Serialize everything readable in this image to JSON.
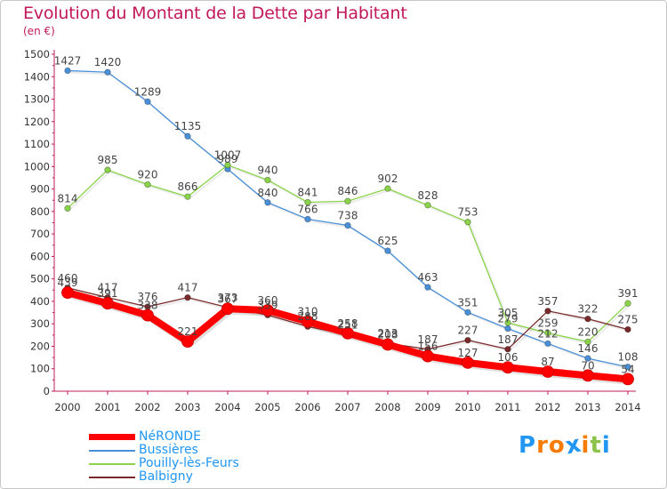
{
  "title": "Evolution du Montant de la Dette par Habitant",
  "subtitle": "(en €)",
  "colors": {
    "title": "#c2185b",
    "axis": "#c2185b",
    "legend_text": "#2196f3"
  },
  "logo": {
    "letters": [
      "P",
      "r",
      "o",
      "x",
      "i",
      "t",
      "i"
    ],
    "colors": [
      "#2196f3",
      "#f57c00",
      "#f57c00",
      "#2196f3",
      "#f57c00",
      "#8bc34a",
      "#2196f3"
    ]
  },
  "chart_data": {
    "type": "line",
    "x": [
      "2000",
      "2001",
      "2002",
      "2003",
      "2004",
      "2005",
      "2006",
      "2007",
      "2008",
      "2009",
      "2010",
      "2011",
      "2012",
      "2013",
      "2014"
    ],
    "ylim": [
      0,
      1500
    ],
    "yticks": [
      "0",
      "100",
      "200",
      "300",
      "400",
      "500",
      "600",
      "700",
      "800",
      "900",
      "1000",
      "1100",
      "1200",
      "1300",
      "1400",
      "1500"
    ],
    "grid": false,
    "legend_position": "bottom-left",
    "series": [
      {
        "name": "NéRONDE",
        "color": "#ff0000",
        "values": [
          439,
          391,
          338,
          221,
          367,
          360,
          310,
          258,
          208,
          156,
          127,
          106,
          87,
          70,
          54
        ],
        "labels": [
          "439",
          "391",
          "338",
          "221",
          "367",
          "360",
          "310",
          "258",
          "208",
          "156",
          "127",
          "106",
          "87",
          "70",
          "54"
        ]
      },
      {
        "name": "Bussières",
        "color": "#4a90d9",
        "values": [
          1427,
          1420,
          1289,
          1135,
          989,
          840,
          766,
          738,
          625,
          463,
          351,
          279,
          212,
          146,
          108
        ],
        "labels": [
          "1427",
          "1420",
          "1289",
          "1135",
          "989",
          "840",
          "766",
          "738",
          "625",
          "463",
          "351",
          "279",
          "212",
          "146",
          "108"
        ]
      },
      {
        "name": "Pouilly-lès-Feurs",
        "color": "#8bd44a",
        "values": [
          814,
          985,
          920,
          866,
          1007,
          940,
          841,
          846,
          902,
          828,
          753,
          305,
          259,
          220,
          391
        ],
        "labels": [
          "814",
          "985",
          "920",
          "866",
          "1007",
          "940",
          "841",
          "846",
          "902",
          "828",
          "753",
          "305",
          "259",
          "220",
          "391"
        ]
      },
      {
        "name": "Balbigny",
        "color": "#7a2a2a",
        "values": [
          460,
          417,
          376,
          417,
          373,
          339,
          288,
          251,
          213,
          187,
          227,
          187,
          357,
          322,
          275
        ],
        "labels": [
          "460",
          "417",
          "376",
          "417",
          "373",
          "339",
          "288",
          "251",
          "213",
          "187",
          "227",
          "187",
          "357",
          "322",
          "275"
        ]
      }
    ]
  }
}
